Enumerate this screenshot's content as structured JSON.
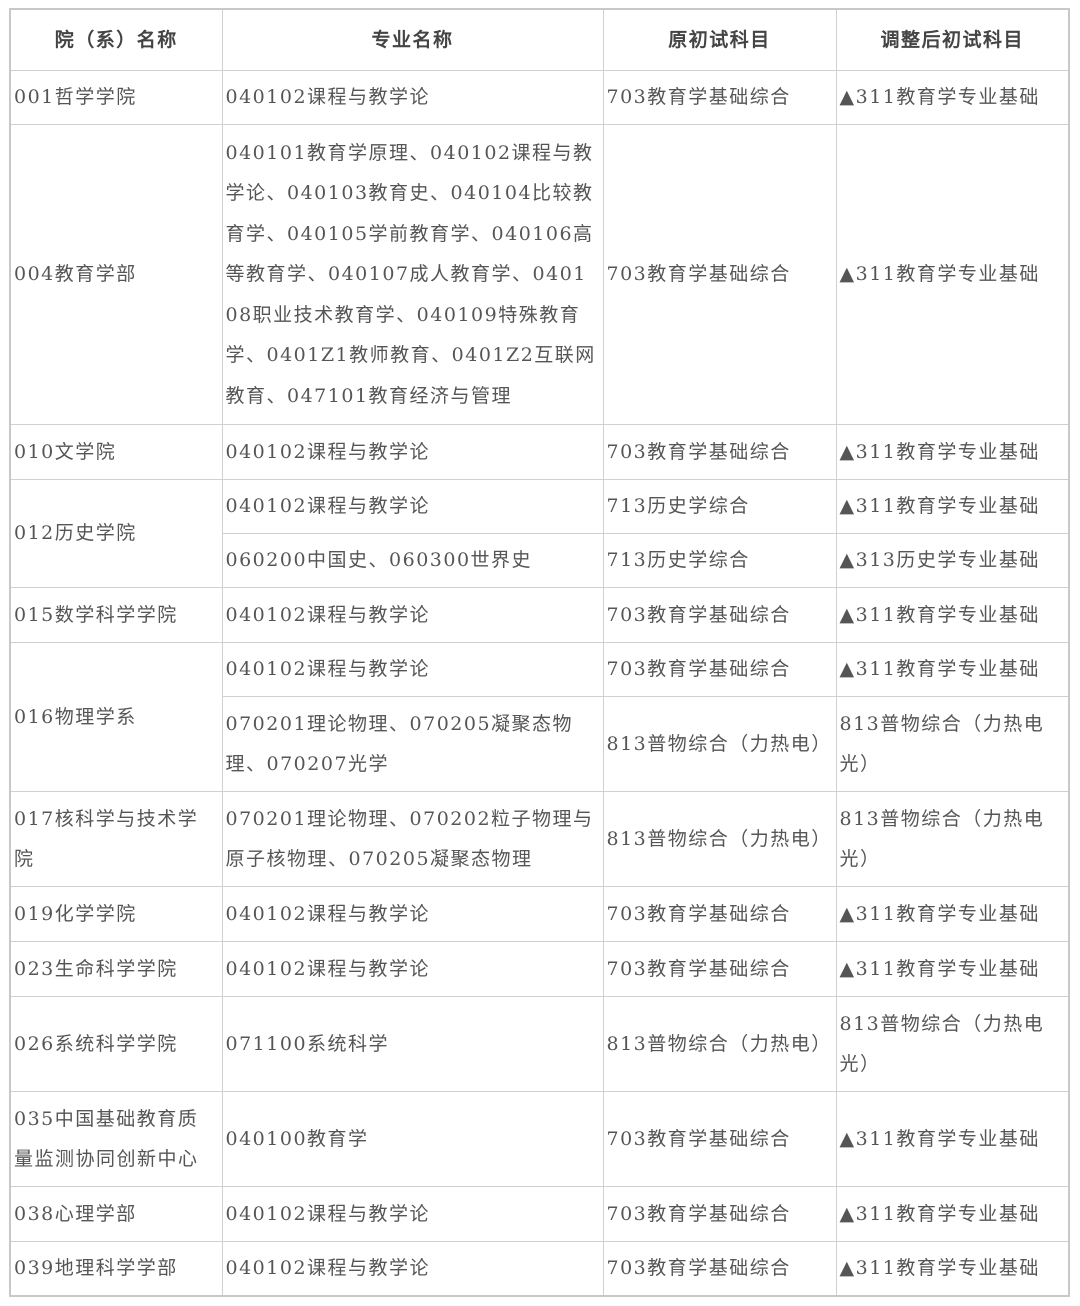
{
  "headers": [
    "院（系）名称",
    "专业名称",
    "原初试科目",
    "调整后初试科目"
  ],
  "rows": [
    {
      "dept": "001哲学学院",
      "programs": [
        {
          "major": "040102课程与教学论",
          "original": "703教育学基础综合",
          "adjusted": "▲311教育学专业基础"
        }
      ]
    },
    {
      "dept": "004教育学部",
      "programs": [
        {
          "major": "040101教育学原理、040102课程与教学论、040103教育史、040104比较教育学、040105学前教育学、040106高等教育学、040107成人教育学、040108职业技术教育学、040109特殊教育学、0401Z1教师教育、0401Z2互联网教育、047101教育经济与管理",
          "original": "703教育学基础综合",
          "adjusted": "▲311教育学专业基础"
        }
      ]
    },
    {
      "dept": "010文学院",
      "programs": [
        {
          "major": "040102课程与教学论",
          "original": "703教育学基础综合",
          "adjusted": "▲311教育学专业基础"
        }
      ]
    },
    {
      "dept": "012历史学院",
      "programs": [
        {
          "major": "040102课程与教学论",
          "original": "713历史学综合",
          "adjusted": "▲311教育学专业基础"
        },
        {
          "major": "060200中国史、060300世界史",
          "original": "713历史学综合",
          "adjusted": "▲313历史学专业基础"
        }
      ]
    },
    {
      "dept": "015数学科学学院",
      "programs": [
        {
          "major": "040102课程与教学论",
          "original": "703教育学基础综合",
          "adjusted": "▲311教育学专业基础"
        }
      ]
    },
    {
      "dept": "016物理学系",
      "programs": [
        {
          "major": "040102课程与教学论",
          "original": "703教育学基础综合",
          "adjusted": "▲311教育学专业基础"
        },
        {
          "major": "070201理论物理、070205凝聚态物理、070207光学",
          "original": "813普物综合（力热电）",
          "adjusted": "813普物综合（力热电光）"
        }
      ]
    },
    {
      "dept": "017核科学与技术学院",
      "programs": [
        {
          "major": "070201理论物理、070202粒子物理与原子核物理、070205凝聚态物理",
          "original": "813普物综合（力热电）",
          "adjusted": "813普物综合（力热电光）"
        }
      ]
    },
    {
      "dept": "019化学学院",
      "programs": [
        {
          "major": "040102课程与教学论",
          "original": "703教育学基础综合",
          "adjusted": "▲311教育学专业基础"
        }
      ]
    },
    {
      "dept": "023生命科学学院",
      "programs": [
        {
          "major": "040102课程与教学论",
          "original": "703教育学基础综合",
          "adjusted": "▲311教育学专业基础"
        }
      ]
    },
    {
      "dept": "026系统科学学院",
      "programs": [
        {
          "major": "071100系统科学",
          "original": "813普物综合（力热电）",
          "adjusted": "813普物综合（力热电光）"
        }
      ]
    },
    {
      "dept": "035中国基础教育质量监测协同创新中心",
      "programs": [
        {
          "major": "040100教育学",
          "original": "703教育学基础综合",
          "adjusted": "▲311教育学专业基础"
        }
      ]
    },
    {
      "dept": "038心理学部",
      "programs": [
        {
          "major": "040102课程与教学论",
          "original": "703教育学基础综合",
          "adjusted": "▲311教育学专业基础"
        }
      ]
    },
    {
      "dept": "039地理科学学部",
      "programs": [
        {
          "major": "040102课程与教学论",
          "original": "703教育学基础综合",
          "adjusted": "▲311教育学专业基础"
        }
      ]
    }
  ]
}
